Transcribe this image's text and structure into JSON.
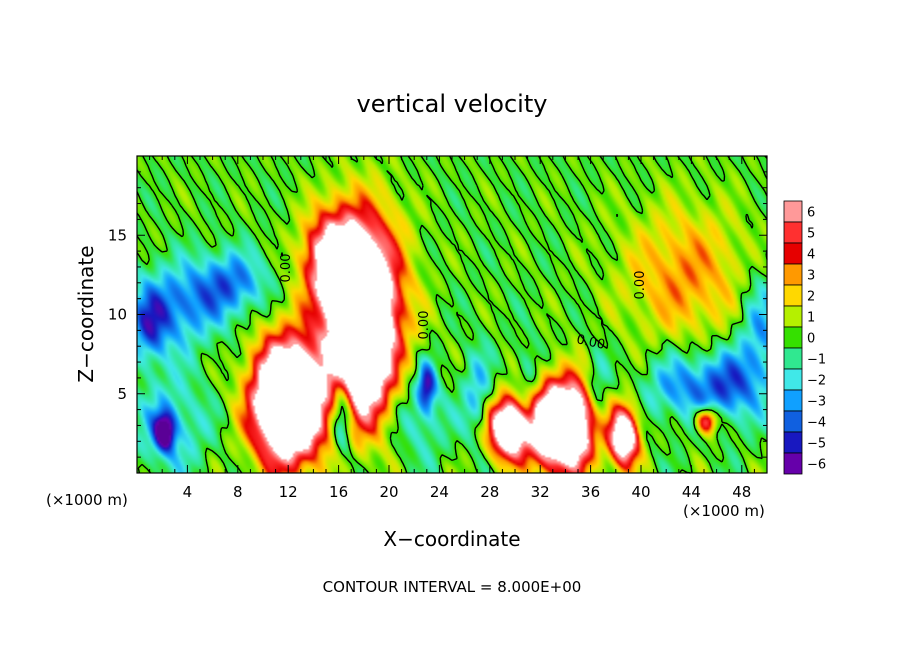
{
  "chart_data": {
    "type": "heatmap",
    "title": "vertical velocity",
    "xlabel": "X−coordinate",
    "ylabel": "Z−coordinate",
    "x_unit": "(×1000 m)",
    "footer": "CONTOUR INTERVAL = 8.000E+00",
    "contour_label": "0.00",
    "xlim": [
      0,
      50
    ],
    "ylim": [
      0,
      20
    ],
    "x_ticks": [
      4,
      8,
      12,
      16,
      20,
      24,
      28,
      32,
      36,
      40,
      44,
      48
    ],
    "y_ticks": [
      5,
      10,
      15
    ],
    "colorbar": {
      "levels": [
        6,
        5,
        4,
        3,
        2,
        1,
        0,
        -1,
        -2,
        -3,
        -4,
        -5,
        -6
      ],
      "labels": [
        "6",
        "5",
        "4",
        "3",
        "2",
        "1",
        "0",
        "−1",
        "−2",
        "−3",
        "−4",
        "−5",
        "−6"
      ],
      "colors": [
        "#ff9999",
        "#ff3030",
        "#e60000",
        "#ff9900",
        "#ffd800",
        "#b5f000",
        "#35e000",
        "#30e890",
        "#40e8e8",
        "#10a0ff",
        "#1060e0",
        "#1818c0",
        "#6600aa"
      ]
    },
    "features": [
      {
        "x": 2.2,
        "z": 2.6,
        "w": -6.5,
        "sx": 0.55,
        "sz": 0.8
      },
      {
        "x": 2.6,
        "z": 3.0,
        "w": -2.5,
        "sx": 2.0,
        "sz": 2.2
      },
      {
        "x": 3.0,
        "z": 10.5,
        "w": -3.5,
        "sx": 2.6,
        "sz": 1.8
      },
      {
        "x": 7.5,
        "z": 12.0,
        "w": -3.5,
        "sx": 2.0,
        "sz": 1.4
      },
      {
        "x": 1.0,
        "z": 9.0,
        "w": -3.0,
        "sx": 1.0,
        "sz": 1.5
      },
      {
        "x": 12.0,
        "z": 4.5,
        "w": 16.0,
        "sx": 1.9,
        "sz": 2.6
      },
      {
        "x": 18.0,
        "z": 8.5,
        "w": 14.0,
        "sx": 1.8,
        "sz": 3.4
      },
      {
        "x": 15.5,
        "z": 13.5,
        "w": 7.0,
        "sx": 1.6,
        "sz": 2.0
      },
      {
        "x": 18.0,
        "z": 12.0,
        "w": 6.0,
        "sx": 2.2,
        "sz": 3.5
      },
      {
        "x": 16.3,
        "z": 4.0,
        "w": -5.0,
        "sx": 0.6,
        "sz": 2.0
      },
      {
        "x": 23.0,
        "z": 5.5,
        "w": -5.0,
        "sx": 0.5,
        "sz": 1.0
      },
      {
        "x": 22.5,
        "z": 3.5,
        "w": -2.0,
        "sx": 1.5,
        "sz": 1.8
      },
      {
        "x": 29.5,
        "z": 2.8,
        "w": 11.0,
        "sx": 1.1,
        "sz": 1.3
      },
      {
        "x": 33.8,
        "z": 3.0,
        "w": 15.0,
        "sx": 1.8,
        "sz": 1.9
      },
      {
        "x": 38.7,
        "z": 2.3,
        "w": 10.0,
        "sx": 0.8,
        "sz": 1.3
      },
      {
        "x": 45.2,
        "z": 3.3,
        "w": 7.0,
        "sx": 0.6,
        "sz": 0.6
      },
      {
        "x": 47.0,
        "z": 5.5,
        "w": -4.0,
        "sx": 1.8,
        "sz": 1.6
      },
      {
        "x": 43.0,
        "z": 5.5,
        "w": -3.0,
        "sx": 2.0,
        "sz": 1.5
      },
      {
        "x": 36.5,
        "z": 4.5,
        "w": -3.0,
        "sx": 0.7,
        "sz": 2.0
      },
      {
        "x": 31.0,
        "z": 5.0,
        "w": -2.5,
        "sx": 0.7,
        "sz": 2.0
      },
      {
        "x": 27.0,
        "z": 5.0,
        "w": -2.5,
        "sx": 0.8,
        "sz": 2.0
      },
      {
        "x": 43.5,
        "z": 12.5,
        "w": 3.0,
        "sx": 3.5,
        "sz": 3.0
      },
      {
        "x": 49.5,
        "z": 9.0,
        "w": -3.0,
        "sx": 1.2,
        "sz": 2.5
      },
      {
        "x": 20.0,
        "z": 9.0,
        "w": -1.8,
        "sx": 1.0,
        "sz": 3.0
      }
    ]
  }
}
